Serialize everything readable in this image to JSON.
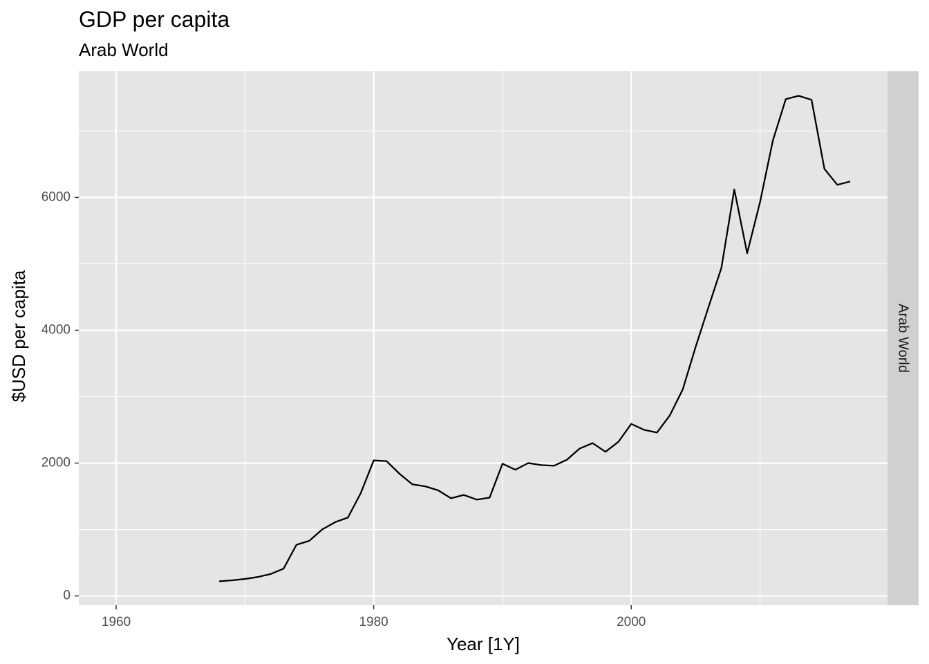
{
  "title": "GDP per capita",
  "subtitle": "Arab World",
  "facet_label": "Arab World",
  "colors": {
    "panel_background": "#e5e5e5",
    "strip_background": "#d0d0d0",
    "grid_line": "#ffffff",
    "series_line": "#000000",
    "tick_text": "#4d4d4d"
  },
  "chart_data": {
    "type": "line",
    "title": "GDP per capita",
    "subtitle": "Arab World",
    "xlabel": "Year [1Y]",
    "ylabel": "$USD per capita",
    "x_ticks": [
      1960,
      1980,
      2000
    ],
    "y_ticks": [
      0,
      2000,
      4000,
      6000
    ],
    "xlim": [
      1957.1,
      2019.9
    ],
    "ylim": [
      -140,
      7900
    ],
    "grid": true,
    "facet": "Arab World",
    "x": [
      1968,
      1969,
      1970,
      1971,
      1972,
      1973,
      1974,
      1975,
      1976,
      1977,
      1978,
      1979,
      1980,
      1981,
      1982,
      1983,
      1984,
      1985,
      1986,
      1987,
      1988,
      1989,
      1990,
      1991,
      1992,
      1993,
      1994,
      1995,
      1996,
      1997,
      1998,
      1999,
      2000,
      2001,
      2002,
      2003,
      2004,
      2005,
      2006,
      2007,
      2008,
      2009,
      2010,
      2011,
      2012,
      2013,
      2014,
      2015,
      2016,
      2017
    ],
    "values": [
      220,
      235,
      255,
      285,
      330,
      410,
      770,
      830,
      1000,
      1110,
      1180,
      1550,
      2040,
      2030,
      1840,
      1680,
      1650,
      1590,
      1470,
      1520,
      1450,
      1480,
      1990,
      1900,
      2000,
      1970,
      1960,
      2050,
      2220,
      2300,
      2170,
      2320,
      2590,
      2500,
      2460,
      2720,
      3110,
      3750,
      4350,
      4940,
      6120,
      5160,
      5930,
      6860,
      7480,
      7530,
      7470,
      6430,
      6190,
      6240
    ]
  }
}
